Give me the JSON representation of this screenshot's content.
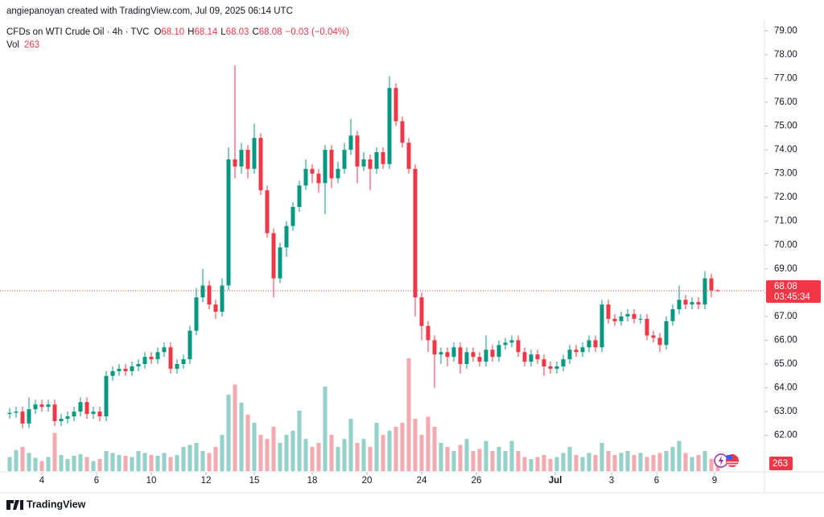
{
  "header": {
    "credit": "angiepanoyan created with TradingView.com, Jul 09, 2025 06:14 UTC"
  },
  "footer": {
    "brand": "TradingView"
  },
  "chart_data": {
    "type": "candlestick",
    "symbol": "CFDs on WTI Crude Oil · 4h · TVC",
    "ohlc_legend": [
      {
        "label": "O",
        "value": "68.10"
      },
      {
        "label": "H",
        "value": "68.14"
      },
      {
        "label": "L",
        "value": "68.03"
      },
      {
        "label": "C",
        "value": "68.08"
      }
    ],
    "change": "−0.03 (−0.04%)",
    "volume_label": "Vol",
    "countdown": "03:45:34",
    "up_color": "#089981",
    "down_color": "#f23645",
    "volume_up_color": "#92d2c7",
    "volume_down_color": "#f7a8ac",
    "ylim": [
      60.5,
      79.45
    ],
    "vlim": [
      0,
      4000
    ],
    "yticks": [
      {
        "value": 62,
        "label": "62.00"
      },
      {
        "value": 63,
        "label": "63.00"
      },
      {
        "value": 64,
        "label": "64.00"
      },
      {
        "value": 65,
        "label": "65.00"
      },
      {
        "value": 66,
        "label": "66.00"
      },
      {
        "value": 67,
        "label": "67.00"
      },
      {
        "value": 68,
        "label": "68.00"
      },
      {
        "value": 69,
        "label": "69.00"
      },
      {
        "value": 70,
        "label": "70.00"
      },
      {
        "value": 71,
        "label": "71.00"
      },
      {
        "value": 72,
        "label": "72.00"
      },
      {
        "value": 73,
        "label": "73.00"
      },
      {
        "value": 74,
        "label": "74.00"
      },
      {
        "value": 75,
        "label": "75.00"
      },
      {
        "value": 76,
        "label": "76.00"
      },
      {
        "value": 77,
        "label": "77.00"
      },
      {
        "value": 78,
        "label": "78.00"
      },
      {
        "value": 79,
        "label": "79.00"
      }
    ],
    "xticks": [
      {
        "value": 5,
        "label": "4"
      },
      {
        "value": 13.5,
        "label": "6"
      },
      {
        "value": 22,
        "label": "10"
      },
      {
        "value": 30.5,
        "label": "12"
      },
      {
        "value": 38,
        "label": "15"
      },
      {
        "value": 47,
        "label": "18"
      },
      {
        "value": 55.5,
        "label": "20"
      },
      {
        "value": 64,
        "label": "24"
      },
      {
        "value": 72.5,
        "label": "26"
      },
      {
        "value": 84.75,
        "label": "Jul"
      },
      {
        "value": 93.5,
        "label": "3"
      },
      {
        "value": 100.5,
        "label": "6"
      },
      {
        "value": 109.5,
        "label": "9"
      }
    ],
    "open": [
      62.9,
      62.95,
      63.0,
      62.5,
      63.1,
      63.3,
      63.2,
      63.3,
      62.6,
      62.7,
      62.8,
      63.0,
      63.4,
      62.9,
      63.0,
      62.8,
      64.5,
      64.7,
      64.8,
      64.7,
      64.9,
      65.0,
      65.3,
      65.2,
      65.5,
      65.7,
      64.8,
      65.0,
      65.2,
      66.4,
      67.8,
      68.3,
      67.5,
      67.2,
      68.3,
      73.6,
      73.3,
      74.0,
      73.2,
      74.5,
      72.3,
      70.5,
      68.6,
      69.9,
      70.8,
      71.6,
      72.5,
      73.2,
      73.0,
      72.6,
      74.0,
      72.8,
      73.2,
      74.0,
      74.6,
      73.3,
      73.6,
      73.2,
      73.9,
      73.4,
      76.6,
      75.2,
      74.3,
      73.2,
      67.8,
      66.6,
      66.0,
      65.4,
      65.5,
      65.3,
      65.7,
      65.0,
      65.5,
      65.3,
      65.1,
      65.6,
      65.3,
      65.8,
      65.9,
      66.0,
      65.5,
      65.1,
      65.4,
      65.2,
      64.9,
      64.8,
      64.9,
      65.2,
      65.6,
      65.5,
      65.7,
      66.0,
      65.7,
      67.5,
      66.9,
      66.8,
      67.0,
      67.1,
      66.9,
      66.9,
      66.2,
      66.1,
      65.8,
      66.8,
      67.3,
      67.7,
      67.5,
      67.6,
      67.5,
      68.6,
      68.1
    ],
    "high": [
      63.15,
      63.2,
      63.2,
      63.6,
      63.5,
      63.5,
      63.5,
      63.5,
      62.9,
      63.0,
      63.2,
      63.6,
      63.6,
      63.2,
      63.2,
      64.7,
      64.9,
      65.0,
      65.0,
      65.1,
      65.2,
      65.5,
      65.5,
      65.7,
      65.9,
      65.9,
      65.2,
      65.4,
      66.6,
      68.2,
      69.0,
      68.5,
      67.7,
      68.6,
      74.1,
      77.55,
      74.3,
      74.2,
      75.1,
      74.7,
      72.5,
      70.7,
      70.1,
      71.0,
      71.8,
      72.7,
      73.6,
      73.4,
      73.2,
      74.2,
      74.2,
      73.5,
      74.3,
      75.3,
      74.8,
      73.9,
      73.8,
      74.1,
      74.1,
      77.1,
      76.8,
      75.4,
      74.5,
      73.4,
      68.0,
      66.8,
      66.2,
      65.7,
      65.7,
      65.9,
      65.9,
      65.7,
      65.7,
      65.5,
      66.2,
      65.8,
      66.0,
      66.1,
      66.2,
      66.2,
      65.7,
      65.6,
      65.6,
      65.4,
      65.1,
      65.1,
      65.4,
      65.8,
      65.8,
      65.9,
      66.2,
      66.2,
      67.7,
      67.7,
      67.1,
      67.2,
      67.3,
      67.3,
      67.1,
      67.1,
      66.4,
      66.3,
      67.0,
      67.5,
      68.3,
      67.9,
      67.8,
      67.8,
      68.9,
      68.8,
      68.14
    ],
    "low": [
      62.7,
      62.75,
      62.3,
      62.3,
      62.9,
      63.0,
      63.0,
      62.4,
      62.4,
      62.5,
      62.6,
      62.8,
      62.7,
      62.7,
      62.6,
      62.6,
      64.3,
      64.5,
      64.5,
      64.5,
      64.7,
      64.8,
      65.0,
      65.0,
      65.3,
      64.6,
      64.6,
      64.8,
      65.0,
      66.2,
      67.6,
      67.3,
      66.9,
      67.0,
      68.1,
      72.8,
      73.0,
      72.8,
      73.0,
      72.1,
      70.3,
      67.8,
      68.4,
      69.5,
      70.6,
      71.4,
      72.3,
      72.6,
      72.2,
      71.3,
      72.4,
      72.6,
      73.0,
      73.8,
      72.6,
      73.1,
      72.3,
      73.0,
      73.2,
      73.2,
      75.0,
      74.1,
      73.0,
      67.0,
      66.0,
      65.5,
      64.0,
      65.0,
      64.9,
      65.1,
      64.6,
      64.8,
      65.1,
      64.9,
      64.9,
      65.1,
      65.1,
      65.6,
      65.7,
      65.3,
      64.9,
      64.9,
      65.0,
      64.5,
      64.6,
      64.6,
      64.7,
      65.0,
      65.3,
      65.3,
      65.5,
      65.5,
      65.5,
      66.7,
      66.6,
      66.6,
      66.8,
      66.7,
      66.7,
      66.0,
      65.9,
      65.5,
      65.6,
      66.6,
      67.1,
      67.3,
      67.3,
      67.3,
      67.3,
      67.8,
      68.03
    ],
    "close": [
      62.95,
      63.0,
      62.5,
      63.1,
      63.3,
      63.2,
      63.3,
      62.6,
      62.7,
      62.8,
      63.0,
      63.4,
      62.9,
      63.0,
      62.8,
      64.5,
      64.7,
      64.8,
      64.7,
      64.9,
      65.0,
      65.3,
      65.2,
      65.5,
      65.7,
      64.8,
      65.0,
      65.2,
      66.4,
      67.8,
      68.3,
      67.5,
      67.2,
      68.3,
      73.6,
      73.3,
      74.0,
      73.2,
      74.5,
      72.3,
      70.5,
      68.6,
      69.9,
      70.8,
      71.6,
      72.5,
      73.2,
      73.0,
      72.6,
      74.0,
      72.8,
      73.2,
      74.0,
      74.6,
      73.3,
      73.6,
      73.2,
      73.9,
      73.4,
      76.6,
      75.2,
      74.3,
      73.2,
      67.8,
      66.6,
      66.0,
      65.4,
      65.5,
      65.3,
      65.7,
      65.0,
      65.5,
      65.3,
      65.1,
      65.6,
      65.3,
      65.8,
      65.9,
      66.0,
      65.5,
      65.1,
      65.4,
      65.2,
      64.9,
      64.8,
      64.9,
      65.2,
      65.6,
      65.5,
      65.7,
      66.0,
      65.7,
      67.5,
      66.9,
      66.8,
      67.0,
      67.1,
      66.9,
      66.9,
      66.2,
      66.1,
      65.8,
      66.8,
      67.3,
      67.7,
      67.5,
      67.6,
      67.5,
      68.6,
      68.1,
      68.08
    ],
    "volume": [
      350,
      520,
      600,
      450,
      330,
      250,
      350,
      950,
      400,
      300,
      380,
      420,
      350,
      250,
      300,
      500,
      450,
      400,
      380,
      350,
      500,
      450,
      400,
      380,
      450,
      350,
      400,
      600,
      650,
      700,
      500,
      450,
      600,
      900,
      1900,
      2150,
      1700,
      1400,
      1200,
      900,
      800,
      1100,
      700,
      900,
      1000,
      1500,
      800,
      600,
      700,
      2100,
      900,
      600,
      800,
      1300,
      700,
      800,
      600,
      1200,
      900,
      1000,
      1100,
      1200,
      2800,
      1300,
      900,
      1350,
      1100,
      700,
      600,
      500,
      650,
      800,
      500,
      550,
      750,
      500,
      600,
      500,
      750,
      500,
      350,
      300,
      350,
      400,
      300,
      350,
      450,
      600,
      400,
      350,
      450,
      400,
      700,
      500,
      400,
      450,
      500,
      400,
      450,
      350,
      400,
      450,
      500,
      600,
      750,
      450,
      350,
      400,
      500,
      300,
      263
    ]
  }
}
